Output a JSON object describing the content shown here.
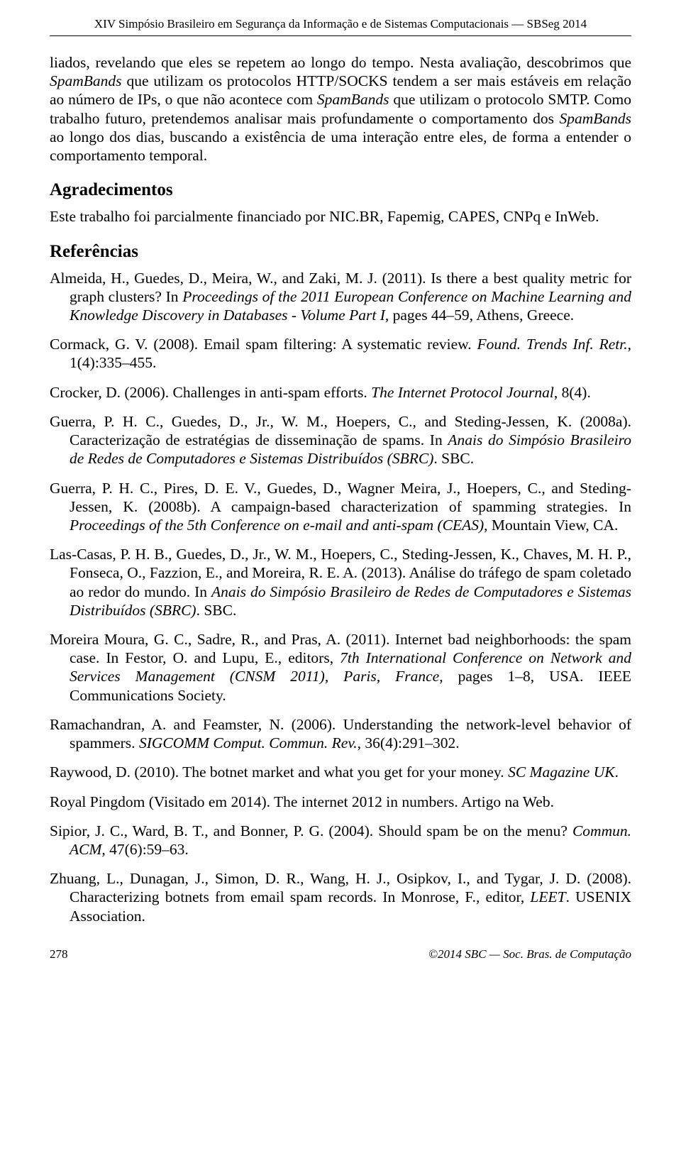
{
  "runningHead": "XIV Simpósio Brasileiro em Segurança da Informação e de Sistemas Computacionais — SBSeg 2014",
  "para1a": "liados, revelando que eles se repetem ao longo do tempo. Nesta avaliação, descobrimos que ",
  "para1b": "SpamBands",
  "para1c": " que utilizam os protocolos HTTP/SOCKS tendem a ser mais estáveis em relação ao número de IPs, o que não acontece com ",
  "para1d": "SpamBands",
  "para1e": " que utilizam o protocolo SMTP. Como trabalho futuro, pretendemos analisar mais profundamente o comportamento dos ",
  "para1f": "SpamBands",
  "para1g": " ao longo dos dias, buscando a existência de uma interação entre eles, de forma a entender o comportamento temporal.",
  "ackTitle": "Agradecimentos",
  "ackText": "Este trabalho foi parcialmente financiado por NIC.BR, Fapemig, CAPES, CNPq e InWeb.",
  "refTitle": "Referências",
  "refs": {
    "r1a": "Almeida, H., Guedes, D., Meira, W., and Zaki, M. J. (2011). Is there a best quality metric for graph clusters? In ",
    "r1b": "Proceedings of the 2011 European Conference on Machine Learning and Knowledge Discovery in Databases - Volume Part I",
    "r1c": ", pages 44–59, Athens, Greece.",
    "r2a": "Cormack, G. V. (2008). Email spam filtering: A systematic review. ",
    "r2b": "Found. Trends Inf. Retr.",
    "r2c": ", 1(4):335–455.",
    "r3a": "Crocker, D. (2006). Challenges in anti-spam efforts. ",
    "r3b": "The Internet Protocol Journal",
    "r3c": ", 8(4).",
    "r4a": "Guerra, P. H. C., Guedes, D., Jr., W. M., Hoepers, C., and Steding-Jessen, K. (2008a). Caracterização de estratégias de disseminação de spams. In ",
    "r4b": "Anais do Simpósio Brasileiro de Redes de Computadores e Sistemas Distribuídos (SBRC)",
    "r4c": ". SBC.",
    "r5a": "Guerra, P. H. C., Pires, D. E. V., Guedes, D., Wagner Meira, J., Hoepers, C., and Steding-Jessen, K. (2008b). A campaign-based characterization of spamming strategies. In ",
    "r5b": "Proceedings of the 5th Conference on e-mail and anti-spam (CEAS)",
    "r5c": ", Mountain View, CA.",
    "r6a": "Las-Casas, P. H. B., Guedes, D., Jr., W. M., Hoepers, C., Steding-Jessen, K., Chaves, M. H. P., Fonseca, O., Fazzion, E., and Moreira, R. E. A. (2013). Análise do tráfego de spam coletado ao redor do mundo. In ",
    "r6b": "Anais do Simpósio Brasileiro de Redes de Computadores e Sistemas Distribuídos (SBRC)",
    "r6c": ". SBC.",
    "r7a": "Moreira Moura, G. C., Sadre, R., and Pras, A. (2011). Internet bad neighborhoods: the spam case. In Festor, O. and Lupu, E., editors, ",
    "r7b": "7th International Conference on Network and Services Management (CNSM 2011), Paris, France",
    "r7c": ", pages 1–8, USA. IEEE Communications Society.",
    "r8a": "Ramachandran, A. and Feamster, N. (2006). Understanding the network-level behavior of spammers. ",
    "r8b": "SIGCOMM Comput. Commun. Rev.",
    "r8c": ", 36(4):291–302.",
    "r9a": "Raywood, D. (2010). The botnet market and what you get for your money. ",
    "r9b": "SC Magazine UK",
    "r9c": ".",
    "r10a": "Royal Pingdom (Visitado em 2014). The internet 2012 in numbers. Artigo na Web.",
    "r11a": "Sipior, J. C., Ward, B. T., and Bonner, P. G. (2004). Should spam be on the menu? ",
    "r11b": "Commun. ACM",
    "r11c": ", 47(6):59–63.",
    "r12a": "Zhuang, L., Dunagan, J., Simon, D. R., Wang, H. J., Osipkov, I., and Tygar, J. D. (2008). Characterizing botnets from email spam records. In Monrose, F., editor, ",
    "r12b": "LEET",
    "r12c": ". USENIX Association."
  },
  "pageNum": "278",
  "footerCopy": "©2014 SBC — Soc. Bras. de Computação"
}
